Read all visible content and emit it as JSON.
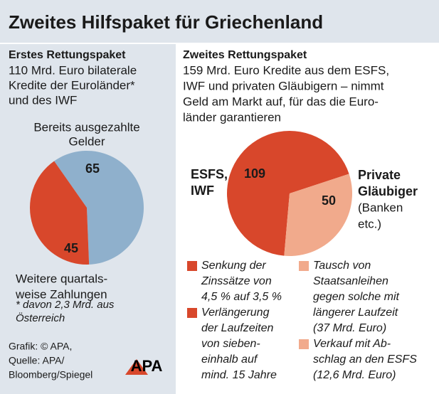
{
  "title": "Zweites Hilfspaket für Griechenland",
  "left_panel": {
    "heading": "Erstes Rettungspaket",
    "text": [
      "110 Mrd. Euro bilaterale",
      "Kredite der Euroländer*",
      "und des IWF"
    ],
    "footnote": [
      "* davon 2,3 Mrd. aus",
      "Österreich"
    ]
  },
  "right_panel": {
    "heading": "Zweites Rettungspaket",
    "text": [
      "159 Mrd. Euro Kredite aus dem ESFS,",
      "IWF und privaten Gläubigern – nimmt",
      "Geld am Markt auf, für das die Euro-",
      "länder garantieren"
    ]
  },
  "source": [
    "Grafik: © APA,",
    "Quelle: APA/",
    "Bloomberg/Spiegel"
  ],
  "logo": "APA",
  "chart_data": [
    {
      "type": "pie",
      "categories": [
        [
          "Bereits ausgezahlte",
          "Gelder"
        ],
        [
          "Weitere quartals-",
          "weise Zahlungen"
        ]
      ],
      "values": [
        65,
        45
      ],
      "colors": [
        "#8fb0cc",
        "#d8472b"
      ]
    },
    {
      "type": "pie",
      "categories": [
        [
          "ESFS,",
          "IWF"
        ],
        [
          "Private",
          "Gläubiger",
          "(Banken",
          "etc.)"
        ]
      ],
      "values": [
        109,
        50
      ],
      "colors": [
        "#d8472b",
        "#f1aa8c"
      ]
    }
  ],
  "legend": [
    {
      "color": "#d8472b",
      "lines": [
        "Senkung der",
        "Zinssätze von",
        "4,5 % auf 3,5 %"
      ]
    },
    {
      "color": "#d8472b",
      "lines": [
        "Verlängerung",
        "der Laufzeiten",
        "von sieben-",
        "einhalb auf",
        "mind. 15 Jahre"
      ]
    },
    {
      "color": "#f1aa8c",
      "lines": [
        "Tausch von",
        "Staatsanleihen",
        "gegen solche mit",
        "längerer Laufzeit",
        "(37 Mrd. Euro)"
      ]
    },
    {
      "color": "#f1aa8c",
      "lines": [
        "Verkauf mit Ab-",
        "schlag an den ESFS",
        "(12,6 Mrd. Euro)"
      ]
    }
  ]
}
